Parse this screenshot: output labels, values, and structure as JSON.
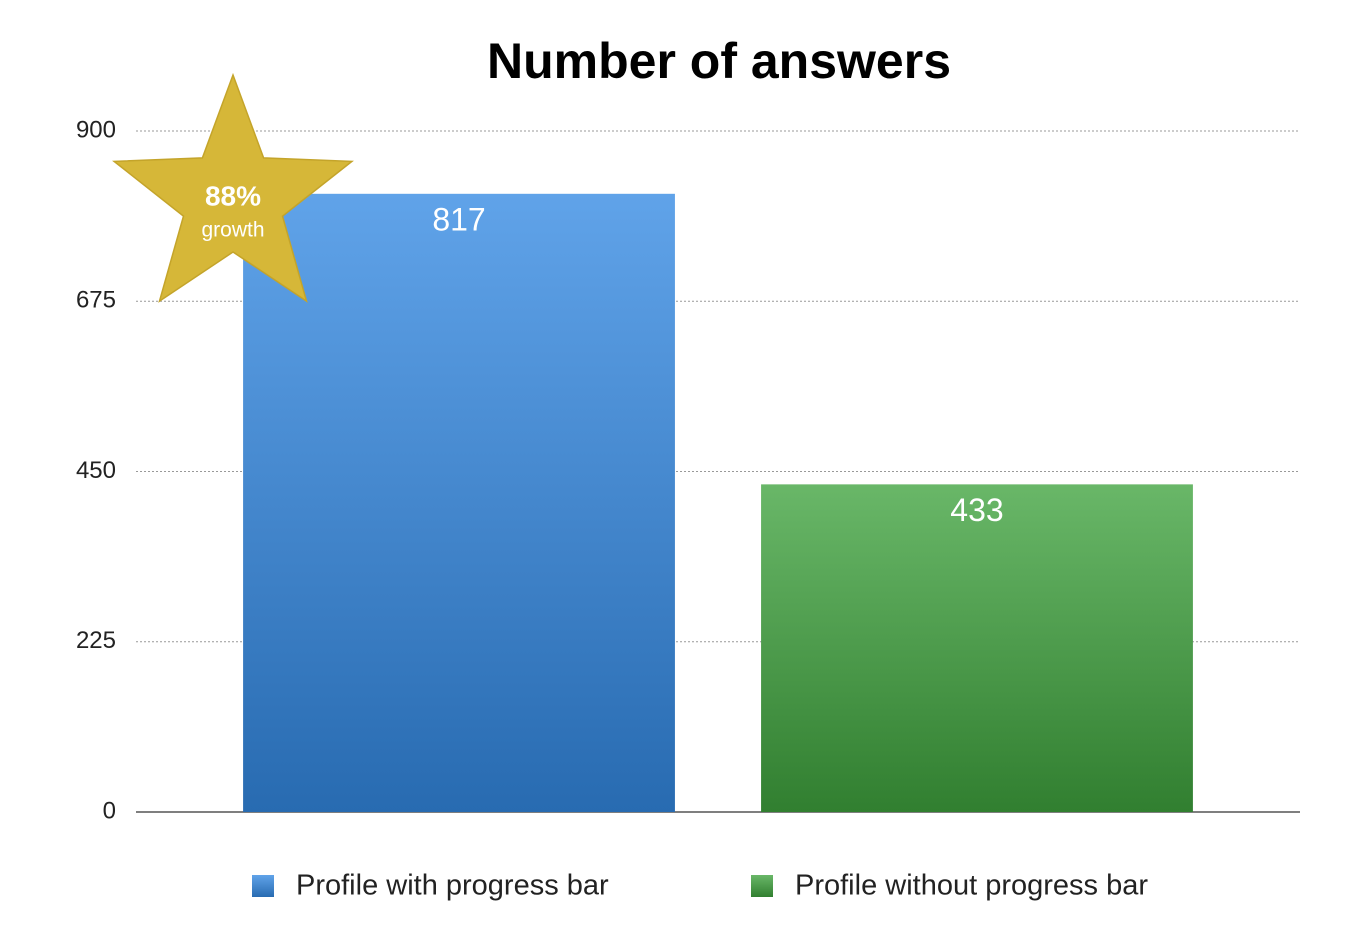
{
  "chart_data": {
    "type": "bar",
    "title": "Number of answers",
    "categories": [
      null
    ],
    "series": [
      {
        "name": "Profile with progress bar",
        "color": "#3389e3",
        "values": [
          817
        ]
      },
      {
        "name": "Profile without progress bar",
        "color": "#3fa33d",
        "values": [
          433
        ]
      }
    ],
    "ylim": [
      0,
      900
    ],
    "yticks": [
      0,
      225,
      450,
      675,
      900
    ],
    "grid": true,
    "annotation": {
      "label": "88%",
      "note": "growth"
    }
  }
}
